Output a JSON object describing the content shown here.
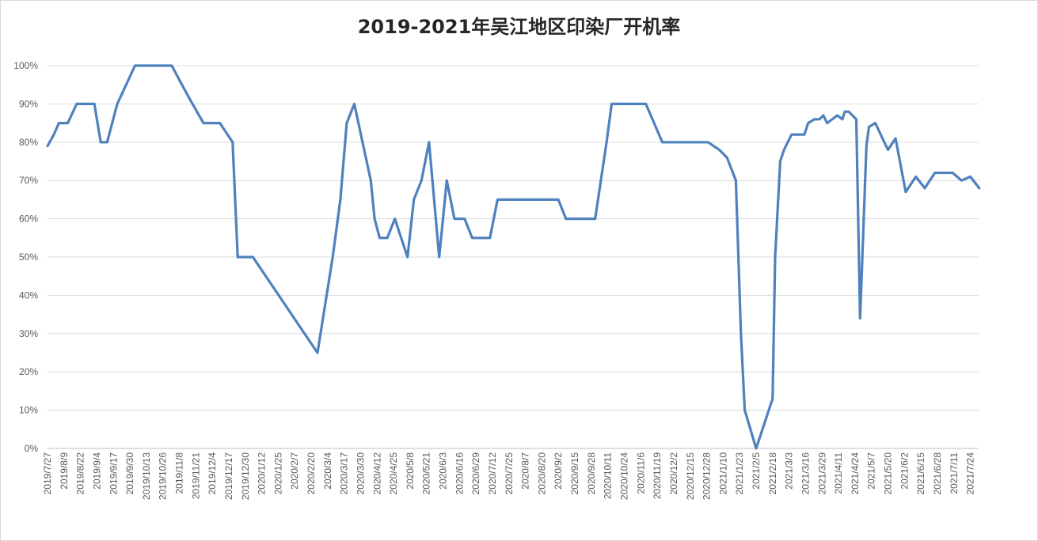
{
  "chart_data": {
    "type": "line",
    "title": "2019-2021年吴江地区印染厂开机率",
    "xlabel": "",
    "ylabel": "",
    "ylim": [
      0,
      100
    ],
    "y_ticks": [
      "0%",
      "10%",
      "20%",
      "30%",
      "40%",
      "50%",
      "60%",
      "70%",
      "80%",
      "90%",
      "100%"
    ],
    "x_tick_labels": [
      "2019/7/27",
      "2019/8/9",
      "2019/8/22",
      "2019/9/4",
      "2019/9/17",
      "2019/9/30",
      "2019/10/13",
      "2019/10/26",
      "2019/11/8",
      "2019/11/21",
      "2019/12/4",
      "2019/12/17",
      "2019/12/30",
      "2020/1/12",
      "2020/1/25",
      "2020/2/7",
      "2020/2/20",
      "2020/3/4",
      "2020/3/17",
      "2020/3/30",
      "2020/4/12",
      "2020/4/25",
      "2020/5/8",
      "2020/5/21",
      "2020/6/3",
      "2020/6/16",
      "2020/6/29",
      "2020/7/12",
      "2020/7/25",
      "2020/8/7",
      "2020/8/20",
      "2020/9/2",
      "2020/9/15",
      "2020/9/28",
      "2020/10/11",
      "2020/10/24",
      "2020/11/6",
      "2020/11/19",
      "2020/12/2",
      "2020/12/15",
      "2020/12/28",
      "2021/1/10",
      "2021/1/23",
      "2021/2/5",
      "2021/2/18",
      "2021/3/3",
      "2021/3/16",
      "2021/3/29",
      "2021/4/11",
      "2021/4/24",
      "2021/5/7",
      "2021/5/20",
      "2021/6/2",
      "2021/6/15",
      "2021/6/28",
      "2021/7/11",
      "2021/7/24"
    ],
    "grid": true,
    "legend": "none",
    "line_color": "#4f81bd",
    "series": [
      {
        "name": "",
        "points": [
          [
            "2019/7/27",
            79
          ],
          [
            "2019/8/1",
            82
          ],
          [
            "2019/8/5",
            85
          ],
          [
            "2019/8/12",
            85
          ],
          [
            "2019/8/19",
            90
          ],
          [
            "2019/8/26",
            90
          ],
          [
            "2019/9/2",
            90
          ],
          [
            "2019/9/7",
            80
          ],
          [
            "2019/9/12",
            80
          ],
          [
            "2019/9/20",
            90
          ],
          [
            "2019/10/4",
            100
          ],
          [
            "2019/10/13",
            100
          ],
          [
            "2019/10/26",
            100
          ],
          [
            "2019/11/2",
            100
          ],
          [
            "2019/11/15",
            92
          ],
          [
            "2019/11/27",
            85
          ],
          [
            "2019/12/4",
            85
          ],
          [
            "2019/12/10",
            85
          ],
          [
            "2019/12/20",
            80
          ],
          [
            "2019/12/24",
            50
          ],
          [
            "2019/12/30",
            50
          ],
          [
            "2020/1/5",
            50
          ],
          [
            "2020/2/25",
            25
          ],
          [
            "2020/3/8",
            50
          ],
          [
            "2020/3/14",
            65
          ],
          [
            "2020/3/19",
            85
          ],
          [
            "2020/3/25",
            90
          ],
          [
            "2020/4/7",
            70
          ],
          [
            "2020/4/10",
            60
          ],
          [
            "2020/4/14",
            55
          ],
          [
            "2020/4/20",
            55
          ],
          [
            "2020/4/26",
            60
          ],
          [
            "2020/5/6",
            50
          ],
          [
            "2020/5/11",
            65
          ],
          [
            "2020/5/17",
            70
          ],
          [
            "2020/5/23",
            80
          ],
          [
            "2020/5/31",
            50
          ],
          [
            "2020/6/6",
            70
          ],
          [
            "2020/6/12",
            60
          ],
          [
            "2020/6/20",
            60
          ],
          [
            "2020/6/26",
            55
          ],
          [
            "2020/7/6",
            55
          ],
          [
            "2020/7/10",
            55
          ],
          [
            "2020/7/16",
            65
          ],
          [
            "2020/7/29",
            65
          ],
          [
            "2020/8/11",
            65
          ],
          [
            "2020/8/24",
            65
          ],
          [
            "2020/9/2",
            65
          ],
          [
            "2020/9/8",
            60
          ],
          [
            "2020/9/15",
            60
          ],
          [
            "2020/9/21",
            60
          ],
          [
            "2020/10/1",
            60
          ],
          [
            "2020/10/10",
            80
          ],
          [
            "2020/10/14",
            90
          ],
          [
            "2020/10/23",
            90
          ],
          [
            "2020/11/3",
            90
          ],
          [
            "2020/11/10",
            90
          ],
          [
            "2020/11/23",
            80
          ],
          [
            "2020/12/1",
            80
          ],
          [
            "2020/12/14",
            80
          ],
          [
            "2020/12/29",
            80
          ],
          [
            "2021/1/7",
            78
          ],
          [
            "2021/1/13",
            76
          ],
          [
            "2021/1/20",
            70
          ],
          [
            "2021/1/24",
            30
          ],
          [
            "2021/1/27",
            10
          ],
          [
            "2021/2/5",
            0
          ],
          [
            "2021/2/18",
            13
          ],
          [
            "2021/2/20",
            50
          ],
          [
            "2021/2/24",
            75
          ],
          [
            "2021/2/27",
            78
          ],
          [
            "2021/3/5",
            82
          ],
          [
            "2021/3/15",
            82
          ],
          [
            "2021/3/18",
            85
          ],
          [
            "2021/3/23",
            86
          ],
          [
            "2021/3/27",
            86
          ],
          [
            "2021/3/30",
            87
          ],
          [
            "2021/4/2",
            85
          ],
          [
            "2021/4/10",
            87
          ],
          [
            "2021/4/14",
            86
          ],
          [
            "2021/4/16",
            88
          ],
          [
            "2021/4/19",
            88
          ],
          [
            "2021/4/25",
            86
          ],
          [
            "2021/4/28",
            34
          ],
          [
            "2021/5/3",
            79
          ],
          [
            "2021/5/5",
            84
          ],
          [
            "2021/5/10",
            85
          ],
          [
            "2021/5/20",
            78
          ],
          [
            "2021/5/26",
            81
          ],
          [
            "2021/6/3",
            67
          ],
          [
            "2021/6/11",
            71
          ],
          [
            "2021/6/18",
            68
          ],
          [
            "2021/6/26",
            72
          ],
          [
            "2021/7/3",
            72
          ],
          [
            "2021/7/10",
            72
          ],
          [
            "2021/7/17",
            70
          ],
          [
            "2021/7/24",
            71
          ],
          [
            "2021/7/31",
            68
          ]
        ]
      }
    ]
  }
}
